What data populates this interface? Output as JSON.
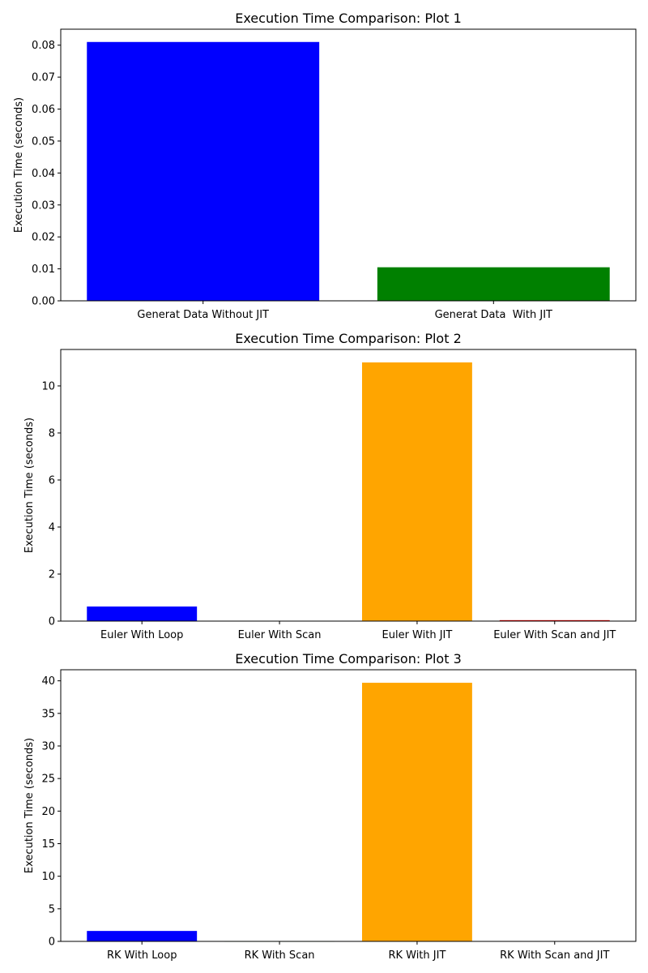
{
  "chart_data": [
    {
      "type": "bar",
      "title": "Execution Time Comparison: Plot 1",
      "xlabel": "",
      "ylabel": "Execution Time (seconds)",
      "ylim": [
        0,
        0.085
      ],
      "yticks": [
        "0.00",
        "0.01",
        "0.02",
        "0.03",
        "0.04",
        "0.05",
        "0.06",
        "0.07",
        "0.08"
      ],
      "categories": [
        "Generat Data Without JIT",
        "Generat Data  With JIT"
      ],
      "values": [
        0.081,
        0.0105
      ],
      "colors": [
        "#0000ff",
        "#008000"
      ],
      "grid": false
    },
    {
      "type": "bar",
      "title": "Execution Time Comparison: Plot 2",
      "xlabel": "",
      "ylabel": "Execution Time (seconds)",
      "ylim": [
        0,
        11.55
      ],
      "yticks": [
        "0",
        "2",
        "4",
        "6",
        "8",
        "10"
      ],
      "categories": [
        "Euler With Loop",
        "Euler With Scan",
        "Euler With JIT",
        "Euler With Scan and JIT"
      ],
      "values": [
        0.62,
        0.005,
        11.0,
        0.04
      ],
      "colors": [
        "#0000ff",
        "#008000",
        "#ffa500",
        "#ff0000"
      ],
      "grid": false
    },
    {
      "type": "bar",
      "title": "Execution Time Comparison: Plot 3",
      "xlabel": "",
      "ylabel": "Execution Time (seconds)",
      "ylim": [
        0,
        41.7
      ],
      "yticks": [
        "0",
        "5",
        "10",
        "15",
        "20",
        "25",
        "30",
        "35",
        "40"
      ],
      "categories": [
        "RK With Loop",
        "RK With Scan",
        "RK With JIT",
        "RK With Scan and JIT"
      ],
      "values": [
        1.6,
        0.01,
        39.7,
        0.02
      ],
      "colors": [
        "#0000ff",
        "#008000",
        "#ffa500",
        "#ff0000"
      ],
      "grid": false
    }
  ]
}
